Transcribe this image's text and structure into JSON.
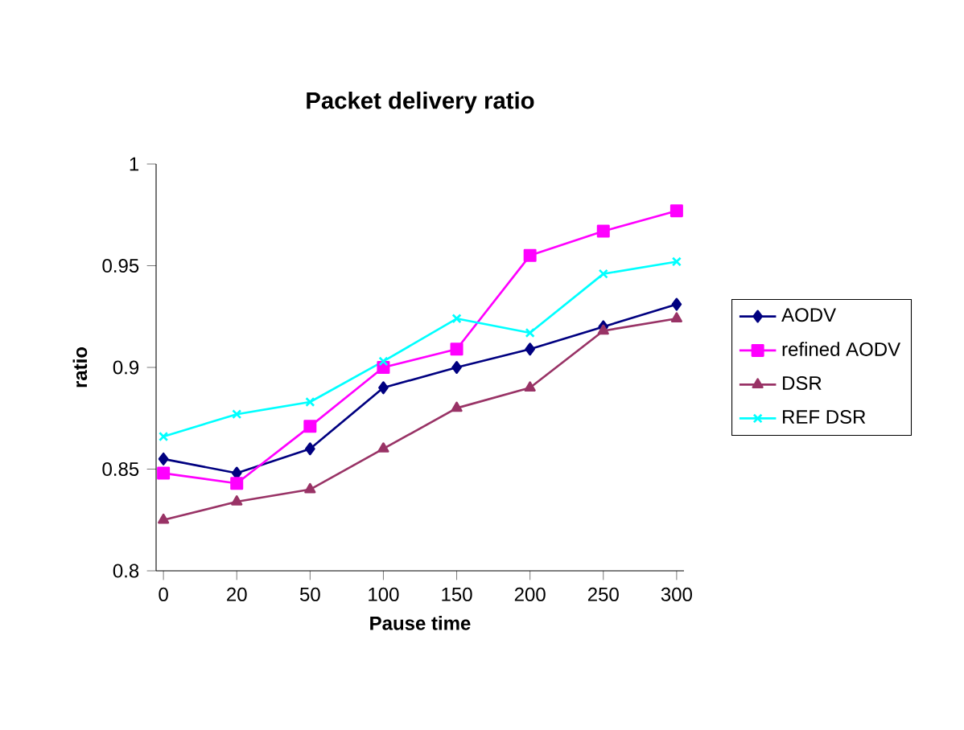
{
  "chart_data": {
    "type": "line",
    "title": "Packet delivery ratio",
    "xlabel": "Pause time",
    "ylabel": "ratio",
    "categories": [
      "0",
      "20",
      "50",
      "100",
      "150",
      "200",
      "250",
      "300"
    ],
    "ylim": [
      0.8,
      1
    ],
    "yticks": [
      0.8,
      0.85,
      0.9,
      0.95,
      1
    ],
    "grid": false,
    "legend": "right",
    "series": [
      {
        "name": "AODV",
        "color": "#000080",
        "marker": "diamond",
        "values": [
          0.855,
          0.848,
          0.86,
          0.89,
          0.9,
          0.909,
          0.92,
          0.931
        ]
      },
      {
        "name": "refined AODV",
        "color": "#ff00ff",
        "marker": "square",
        "values": [
          0.848,
          0.843,
          0.871,
          0.9,
          0.909,
          0.955,
          0.967,
          0.977
        ]
      },
      {
        "name": "DSR",
        "color": "#993366",
        "marker": "triangle",
        "values": [
          0.825,
          0.834,
          0.84,
          0.86,
          0.88,
          0.89,
          0.918,
          0.924
        ]
      },
      {
        "name": "REF DSR",
        "color": "#00ffff",
        "marker": "cross",
        "values": [
          0.866,
          0.877,
          0.883,
          0.903,
          0.924,
          0.917,
          0.946,
          0.952
        ]
      }
    ]
  }
}
